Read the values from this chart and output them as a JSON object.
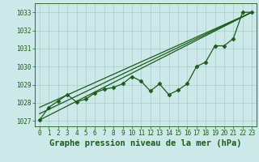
{
  "xlabel": "Graphe pression niveau de la mer (hPa)",
  "xlim": [
    -0.5,
    23.5
  ],
  "ylim": [
    1026.7,
    1033.5
  ],
  "yticks": [
    1027,
    1028,
    1029,
    1030,
    1031,
    1032,
    1033
  ],
  "xticks": [
    0,
    1,
    2,
    3,
    4,
    5,
    6,
    7,
    8,
    9,
    10,
    11,
    12,
    13,
    14,
    15,
    16,
    17,
    18,
    19,
    20,
    21,
    22,
    23
  ],
  "bg_color": "#cce8e8",
  "grid_color": "#aacccc",
  "line_color": "#1a5c1a",
  "line1_x": [
    0,
    1,
    2,
    3,
    4,
    5,
    6,
    7,
    8,
    9,
    10,
    11,
    12,
    13,
    14,
    15,
    16,
    17,
    18,
    19,
    20,
    21,
    22,
    23
  ],
  "line1_y": [
    1027.05,
    1027.75,
    1028.1,
    1028.45,
    1028.05,
    1028.2,
    1028.55,
    1028.75,
    1028.85,
    1029.05,
    1029.45,
    1029.2,
    1028.65,
    1029.05,
    1028.45,
    1028.7,
    1029.05,
    1030.0,
    1030.25,
    1031.15,
    1031.15,
    1031.55,
    1033.0,
    1033.0
  ],
  "line2_x": [
    0,
    23
  ],
  "line2_y": [
    1027.05,
    1033.0
  ],
  "trend1_x": [
    0,
    23
  ],
  "trend1_y": [
    1027.75,
    1033.0
  ],
  "trend2_x": [
    0,
    23
  ],
  "trend2_y": [
    1027.4,
    1033.0
  ],
  "marker": "D",
  "marker_size": 2.5,
  "line_width": 0.9,
  "tick_fontsize": 5.5,
  "xlabel_fontsize": 7.5,
  "xlabel_color": "#1a5c1a"
}
